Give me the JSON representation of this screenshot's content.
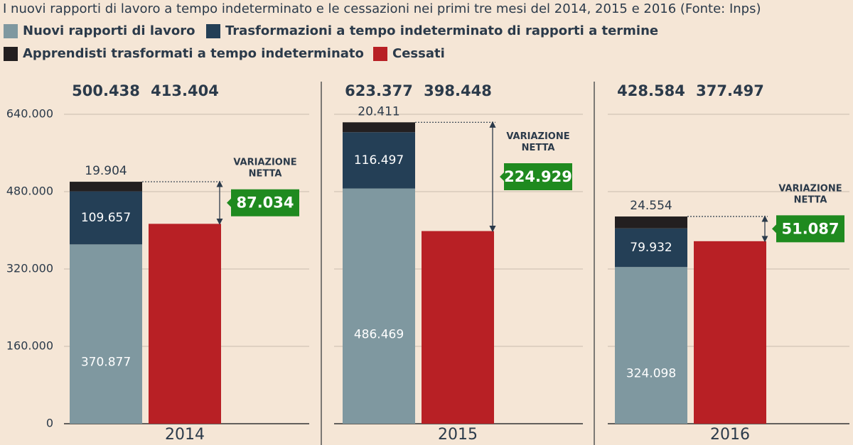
{
  "chart_data": {
    "type": "bar",
    "stacked": true,
    "title": "I nuovi rapporti di lavoro a tempo indeterminato e le cessazioni nei primi tre mesi del 2014, 2015 e 2016 (Fonte: Inps)",
    "categories": [
      "2014",
      "2015",
      "2016"
    ],
    "series": [
      {
        "name": "Nuovi rapporti di lavoro",
        "color": "#7f98a0",
        "stack": "nuovi",
        "values": [
          370877,
          486469,
          324098
        ],
        "value_labels": [
          "370.877",
          "486.469",
          "324.098"
        ]
      },
      {
        "name": "Trasformazioni a tempo indeterminato di rapporti a termine",
        "color": "#243f56",
        "stack": "nuovi",
        "values": [
          109657,
          116497,
          79932
        ],
        "value_labels": [
          "109.657",
          "116.497",
          "79.932"
        ]
      },
      {
        "name": "Apprendisti trasformati a tempo indeterminato",
        "color": "#231f20",
        "stack": "nuovi",
        "values": [
          19904,
          20411,
          24554
        ],
        "value_labels": [
          "19.904",
          "20.411",
          "24.554"
        ]
      },
      {
        "name": "Cessati",
        "color": "#b82025",
        "stack": "cessati",
        "values": [
          413404,
          398448,
          377497
        ],
        "value_labels": [
          "413.404",
          "398.448",
          "377.497"
        ]
      }
    ],
    "totals": {
      "values": [
        500438,
        623377,
        428584
      ],
      "value_labels": [
        "500.438",
        "623.377",
        "428.584"
      ]
    },
    "annotation": "VARIAZIONE NETTA",
    "net_change": {
      "color": "#1f8a1f",
      "values": [
        87034,
        224929,
        51087
      ],
      "value_labels": [
        "87.034",
        "224.929",
        "51.087"
      ]
    },
    "ylim": [
      0,
      640000
    ],
    "yticks": [
      0,
      {
        "value": 160000,
        "label": "160.000"
      },
      {
        "value": 320000,
        "label": "320.000"
      },
      {
        "value": 480000,
        "label": "480.000"
      },
      {
        "value": 640000,
        "label": "640.000"
      }
    ],
    "grid": true
  }
}
